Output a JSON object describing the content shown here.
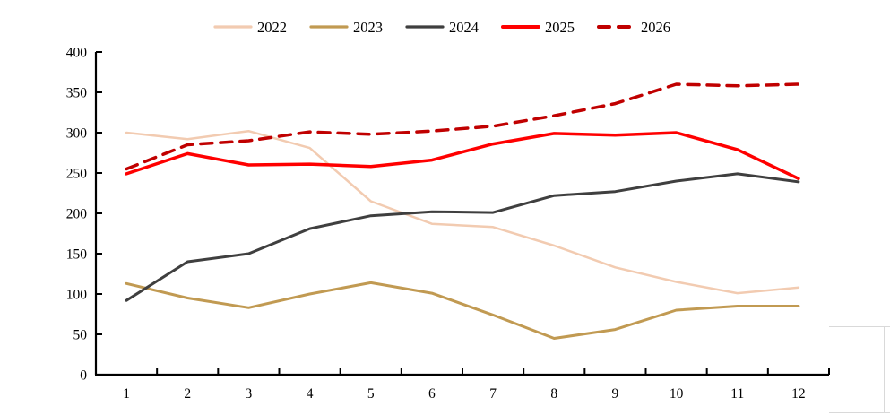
{
  "chart_data": {
    "type": "line",
    "title": "",
    "xlabel": "",
    "ylabel": "",
    "categories": [
      "1",
      "2",
      "3",
      "4",
      "5",
      "6",
      "7",
      "8",
      "9",
      "10",
      "11",
      "12"
    ],
    "ylim": [
      0,
      400
    ],
    "yticks": [
      0,
      50,
      100,
      150,
      200,
      250,
      300,
      350,
      400
    ],
    "grid": false,
    "legend_position": "top",
    "axis_color": "#000000",
    "gridline_fragment_color": "#d9d9d9",
    "series": [
      {
        "name": "2022",
        "color": "#F2CBB1",
        "width": 2.5,
        "dash": null,
        "values": [
          300,
          292,
          302,
          281,
          215,
          187,
          183,
          160,
          133,
          115,
          101,
          108
        ]
      },
      {
        "name": "2023",
        "color": "#C19A52",
        "width": 3,
        "dash": null,
        "values": [
          113,
          95,
          83,
          100,
          114,
          101,
          74,
          45,
          56,
          80,
          85,
          85
        ]
      },
      {
        "name": "2024",
        "color": "#3F3F3F",
        "width": 3,
        "dash": null,
        "values": [
          92,
          140,
          150,
          181,
          197,
          202,
          201,
          222,
          227,
          240,
          249,
          239
        ]
      },
      {
        "name": "2025",
        "color": "#FF0000",
        "width": 3.5,
        "dash": null,
        "values": [
          249,
          274,
          260,
          261,
          258,
          266,
          286,
          299,
          297,
          300,
          279,
          243
        ]
      },
      {
        "name": "2026",
        "color": "#C00000",
        "width": 3.5,
        "dash": "13 9",
        "values": [
          255,
          285,
          290,
          301,
          298,
          302,
          308,
          321,
          336,
          360,
          358,
          360
        ]
      }
    ]
  }
}
